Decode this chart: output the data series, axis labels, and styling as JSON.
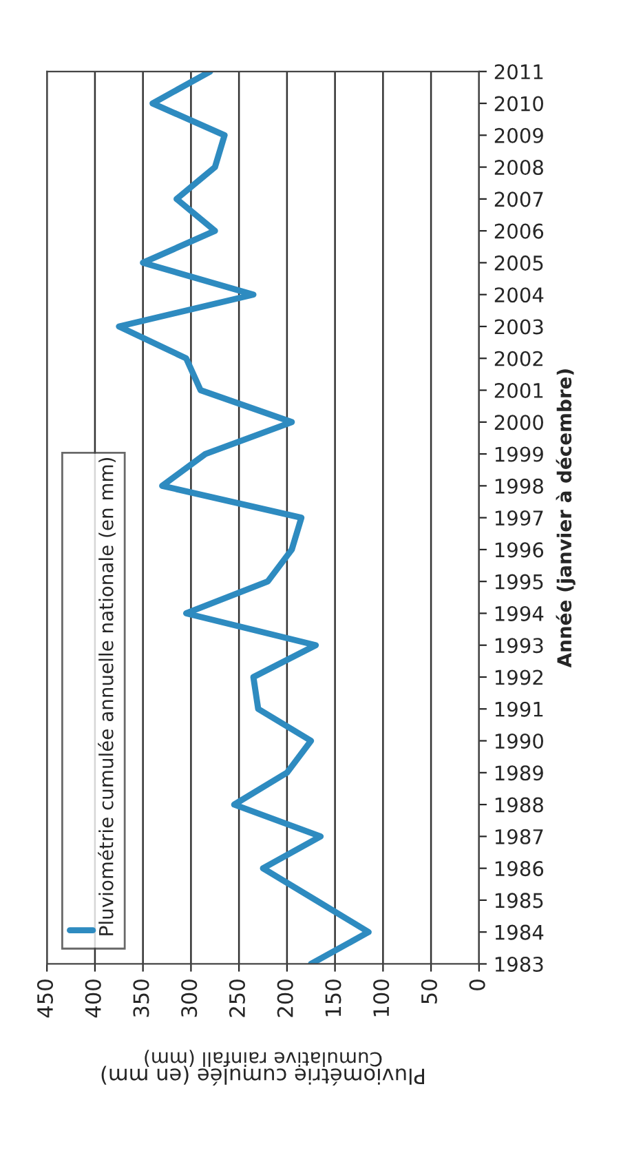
{
  "chart_data": {
    "type": "line",
    "orientation": "horizontal",
    "categories": [
      "2011",
      "2010",
      "2009",
      "2008",
      "2007",
      "2006",
      "2005",
      "2004",
      "2003",
      "2002",
      "2001",
      "2000",
      "1999",
      "1998",
      "1997",
      "1996",
      "1995",
      "1994",
      "1993",
      "1992",
      "1991",
      "1990",
      "1989",
      "1988",
      "1987",
      "1986",
      "1985",
      "1984",
      "1983"
    ],
    "series": [
      {
        "name": "Pluviométrie cumulée annuelle nationale (en mm)",
        "color": "#2e8bc0",
        "values": [
          280,
          340,
          265,
          275,
          315,
          275,
          350,
          235,
          375,
          305,
          290,
          195,
          285,
          330,
          185,
          195,
          220,
          305,
          170,
          235,
          230,
          175,
          200,
          255,
          165,
          225,
          170,
          115,
          175
        ]
      }
    ],
    "xlim": [
      450,
      0
    ],
    "xticks": [
      450,
      400,
      350,
      300,
      250,
      200,
      150,
      100,
      50,
      0
    ],
    "xlabel": "Pluviométrie cumulée (en mm)",
    "ylabel": "Année (janvier à décembre)",
    "annotations": [
      "Cumulative rainfall (mm)"
    ],
    "grid": "x",
    "legend": "bottom left",
    "marker": "none",
    "line_style": "solid"
  }
}
